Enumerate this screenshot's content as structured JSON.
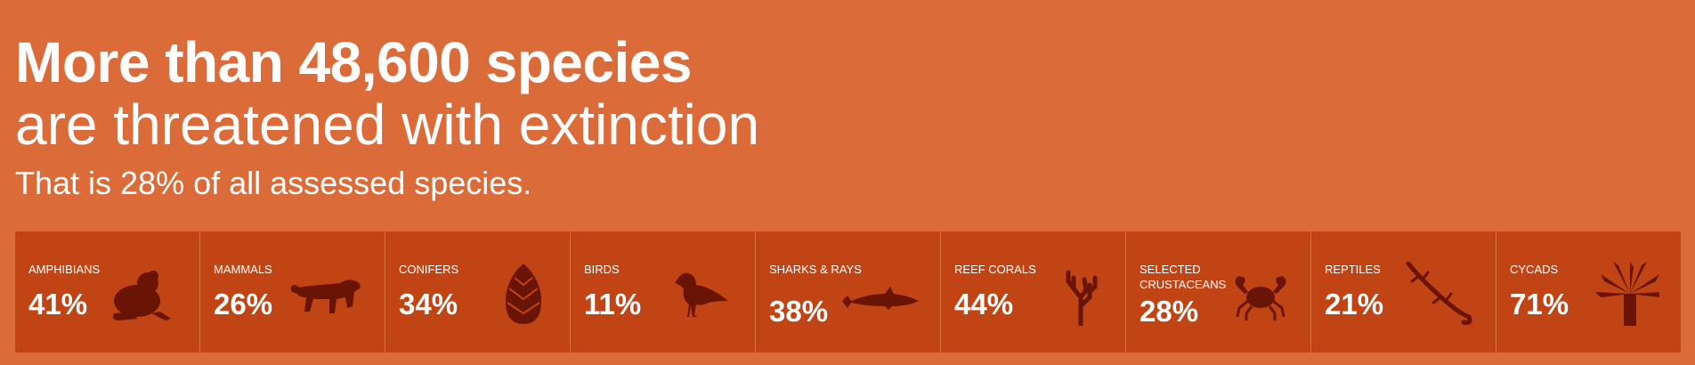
{
  "headline": "More than 48,600 species",
  "subhead": "are threatened with extinction",
  "tagline": "That is 28% of all assessed species.",
  "colors": {
    "background": "#dc6b3a",
    "panel": "#c14415",
    "icon": "#6a1406",
    "text": "#ffffff"
  },
  "groups": [
    {
      "label": "AMPHIBIANS",
      "percent": "41%",
      "icon": "frog-icon"
    },
    {
      "label": "MAMMALS",
      "percent": "26%",
      "icon": "tiger-icon"
    },
    {
      "label": "CONIFERS",
      "percent": "34%",
      "icon": "pinecone-icon"
    },
    {
      "label": "BIRDS",
      "percent": "11%",
      "icon": "bird-icon"
    },
    {
      "label": "SHARKS & RAYS",
      "percent": "38%",
      "icon": "shark-icon"
    },
    {
      "label": "REEF CORALS",
      "percent": "44%",
      "icon": "coral-icon"
    },
    {
      "label": "SELECTED CRUSTACEANS",
      "percent": "28%",
      "icon": "crab-icon"
    },
    {
      "label": "REPTILES",
      "percent": "21%",
      "icon": "lizard-icon"
    },
    {
      "label": "CYCADS",
      "percent": "71%",
      "icon": "cycad-icon"
    }
  ]
}
